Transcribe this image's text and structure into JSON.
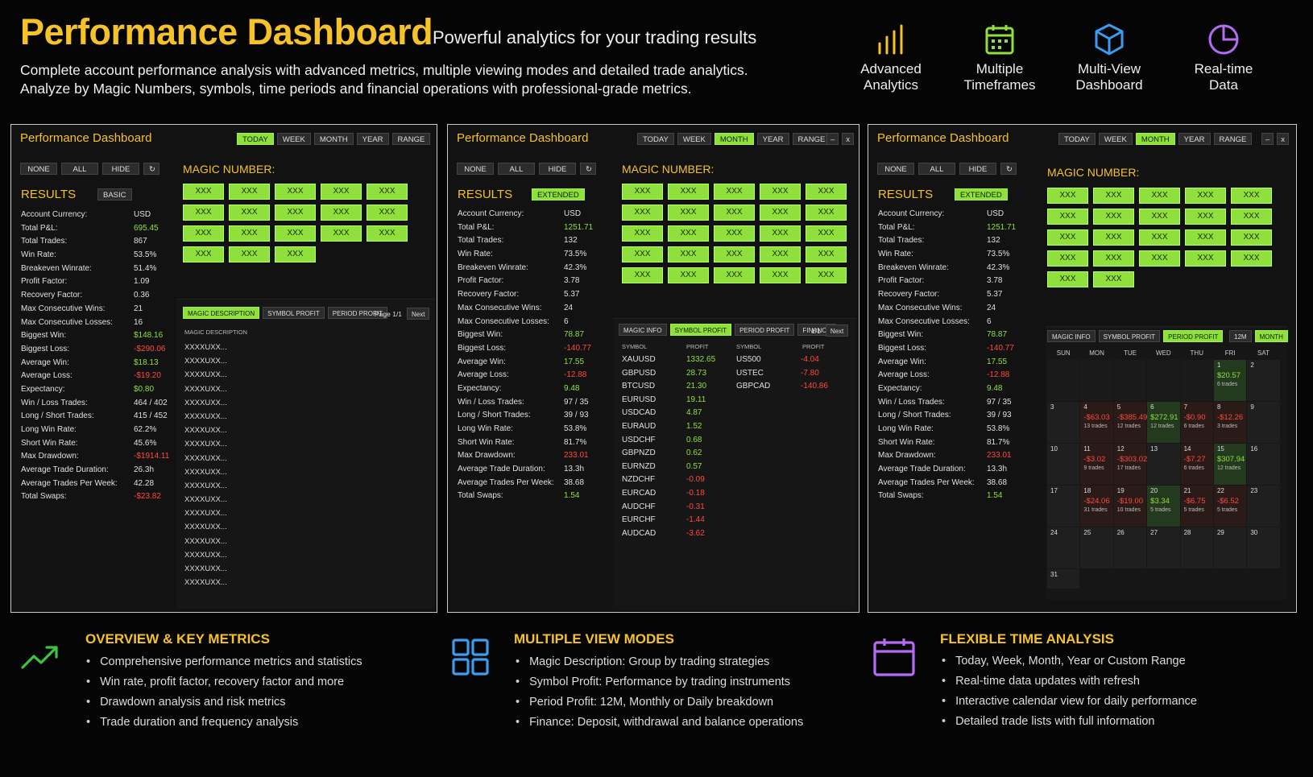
{
  "hero": {
    "title": "Performance Dashboard",
    "subtitle": "Powerful analytics for your trading results",
    "desc1": "Complete account performance analysis with advanced metrics, multiple viewing modes and detailed trade analytics.",
    "desc2": "Analyze by Magic Numbers, symbols, time periods and financial operations with professional-grade metrics."
  },
  "features": [
    {
      "l1": "Advanced",
      "l2": "Analytics",
      "icon": "bar-chart-icon",
      "color": "#f6c22a"
    },
    {
      "l1": "Multiple",
      "l2": "Timeframes",
      "icon": "calendar-icon",
      "color": "#8fe03c"
    },
    {
      "l1": "Multi-View",
      "l2": "Dashboard",
      "icon": "cube-icon",
      "color": "#3b9cf0"
    },
    {
      "l1": "Real-time",
      "l2": "Data",
      "icon": "pie-chart-icon",
      "color": "#b46cf0"
    }
  ],
  "colors": {
    "accent": "#f6c22a",
    "active": "#8fe03c",
    "negative": "#ff4a3d"
  },
  "common": {
    "periods": [
      "TODAY",
      "WEEK",
      "MONTH",
      "YEAR",
      "RANGE"
    ],
    "filters": [
      "NONE",
      "ALL",
      "HIDE",
      "↻"
    ],
    "results_label": "RESULTS",
    "magic_label": "MAGIC NUMBER:",
    "magic_btn": "XXX",
    "win_min": "–",
    "win_close": "x",
    "metric_labels": [
      "Account Currency:",
      "Total P&L:",
      "Total Trades:",
      "Win Rate:",
      "Breakeven Winrate:",
      "Profit Factor:",
      "Recovery Factor:",
      "Max Consecutive Wins:",
      "Max Consecutive Losses:",
      "Biggest Win:",
      "Biggest Loss:",
      "Average Win:",
      "Average Loss:",
      "Expectancy:",
      "Win / Loss Trades:",
      "Long / Short Trades:",
      "Long Win Rate:",
      "Short Win Rate:",
      "Max Drawdown:",
      "Average Trade Duration:",
      "Average Trades Per Week:",
      "Total Swaps:"
    ]
  },
  "panel1": {
    "title": "Performance Dashboard",
    "mode": "BASIC",
    "metrics": [
      [
        "USD",
        "neu"
      ],
      [
        "695.45",
        "pos"
      ],
      [
        "867",
        "neu"
      ],
      [
        "53.5%",
        "neu"
      ],
      [
        "51.4%",
        "neu"
      ],
      [
        "1.09",
        "neu"
      ],
      [
        "0.36",
        "neu"
      ],
      [
        "21",
        "neu"
      ],
      [
        "16",
        "neu"
      ],
      [
        "$148.16",
        "pos"
      ],
      [
        "-$290.06",
        "neg"
      ],
      [
        "$18.13",
        "pos"
      ],
      [
        "-$19.20",
        "neg"
      ],
      [
        "$0.80",
        "pos"
      ],
      [
        "464 / 402",
        "neu"
      ],
      [
        "415 / 452",
        "neu"
      ],
      [
        "62.2%",
        "neu"
      ],
      [
        "45.6%",
        "neu"
      ],
      [
        "-$1914.11",
        "neg"
      ],
      [
        "26.3h",
        "neu"
      ],
      [
        "42.28",
        "neu"
      ],
      [
        "-$23.82",
        "neg"
      ]
    ],
    "tabs": [
      "MAGIC DESCRIPTION",
      "SYMBOL PROFIT",
      "PERIOD PROFIT"
    ],
    "page": "Page 1/1",
    "next": "Next",
    "desc_header": "MAGIC DESCRIPTION",
    "desc_items": [
      "XXXXUXX...",
      "XXXXUXX...",
      "XXXXUXX...",
      "XXXXUXX...",
      "XXXXUXX...",
      "XXXXUXX...",
      "XXXXUXX...",
      "XXXXUXX...",
      "XXXXUXX...",
      "XXXXUXX...",
      "XXXXUXX...",
      "XXXXUXX...",
      "XXXXUXX...",
      "XXXXUXX...",
      "XXXXUXX...",
      "XXXXUXX...",
      "XXXXUXX...",
      "XXXXUXX..."
    ]
  },
  "panel2": {
    "title": "Performance Dashboard",
    "mode": "EXTENDED",
    "metrics": [
      [
        "USD",
        "neu"
      ],
      [
        "1251.71",
        "pos"
      ],
      [
        "132",
        "neu"
      ],
      [
        "73.5%",
        "neu"
      ],
      [
        "42.3%",
        "neu"
      ],
      [
        "3.78",
        "neu"
      ],
      [
        "5.37",
        "neu"
      ],
      [
        "24",
        "neu"
      ],
      [
        "6",
        "neu"
      ],
      [
        "78.87",
        "pos"
      ],
      [
        "-140.77",
        "neg"
      ],
      [
        "17.55",
        "pos"
      ],
      [
        "-12.88",
        "neg"
      ],
      [
        "9.48",
        "pos"
      ],
      [
        "97 / 35",
        "neu"
      ],
      [
        "39 / 93",
        "neu"
      ],
      [
        "53.8%",
        "neu"
      ],
      [
        "81.7%",
        "neu"
      ],
      [
        "233.01",
        "neg"
      ],
      [
        "13.3h",
        "neu"
      ],
      [
        "38.68",
        "neu"
      ],
      [
        "1.54",
        "pos"
      ]
    ],
    "tabs": [
      "MAGIC INFO",
      "SYMBOL PROFIT",
      "PERIOD PROFIT",
      "FINANCE"
    ],
    "page": "1/1",
    "next": "Next",
    "col_symbol": "SYMBOL",
    "col_profit": "PROFIT",
    "symbols_left": [
      [
        "XAUUSD",
        "1332.65",
        "pos"
      ],
      [
        "GBPUSD",
        "28.73",
        "pos"
      ],
      [
        "BTCUSD",
        "21.30",
        "pos"
      ],
      [
        "EURUSD",
        "19.11",
        "pos"
      ],
      [
        "USDCAD",
        "4.87",
        "pos"
      ],
      [
        "EURAUD",
        "1.52",
        "pos"
      ],
      [
        "USDCHF",
        "0.68",
        "pos"
      ],
      [
        "GBPNZD",
        "0.62",
        "pos"
      ],
      [
        "EURNZD",
        "0.57",
        "pos"
      ],
      [
        "NZDCHF",
        "-0.09",
        "neg"
      ],
      [
        "EURCAD",
        "-0.18",
        "neg"
      ],
      [
        "AUDCHF",
        "-0.31",
        "neg"
      ],
      [
        "EURCHF",
        "-1.44",
        "neg"
      ],
      [
        "AUDCAD",
        "-3.62",
        "neg"
      ]
    ],
    "symbols_right": [
      [
        "US500",
        "-4.04",
        "neg"
      ],
      [
        "USTEC",
        "-7.80",
        "neg"
      ],
      [
        "GBPCAD",
        "-140.86",
        "neg"
      ]
    ]
  },
  "panel3": {
    "title": "Performance Dashboard",
    "mode": "EXTENDED",
    "metrics": [
      [
        "USD",
        "neu"
      ],
      [
        "1251.71",
        "pos"
      ],
      [
        "132",
        "neu"
      ],
      [
        "73.5%",
        "neu"
      ],
      [
        "42.3%",
        "neu"
      ],
      [
        "3.78",
        "neu"
      ],
      [
        "5.37",
        "neu"
      ],
      [
        "24",
        "neu"
      ],
      [
        "6",
        "neu"
      ],
      [
        "78.87",
        "pos"
      ],
      [
        "-140.77",
        "neg"
      ],
      [
        "17.55",
        "pos"
      ],
      [
        "-12.88",
        "neg"
      ],
      [
        "9.48",
        "pos"
      ],
      [
        "97 / 35",
        "neu"
      ],
      [
        "39 / 93",
        "neu"
      ],
      [
        "53.8%",
        "neu"
      ],
      [
        "81.7%",
        "neu"
      ],
      [
        "233.01",
        "neg"
      ],
      [
        "13.3h",
        "neu"
      ],
      [
        "38.68",
        "neu"
      ],
      [
        "1.54",
        "pos"
      ]
    ],
    "tabs": [
      "MAGIC INFO",
      "SYMBOL PROFIT",
      "PERIOD PROFIT"
    ],
    "view_btns": [
      "12M",
      "MONTH"
    ],
    "weekdays": [
      "SUN",
      "MON",
      "TUE",
      "WED",
      "THU",
      "FRI",
      "SAT"
    ],
    "calendar": [
      {
        "d": "",
        "a": "",
        "c": "",
        "t": ""
      },
      {
        "d": "",
        "a": "",
        "c": "",
        "t": ""
      },
      {
        "d": "",
        "a": "",
        "c": "",
        "t": ""
      },
      {
        "d": "",
        "a": "",
        "c": "",
        "t": ""
      },
      {
        "d": "",
        "a": "",
        "c": "",
        "t": ""
      },
      {
        "d": "1",
        "a": "$20.57",
        "c": "6 trades",
        "t": "pos"
      },
      {
        "d": "2",
        "a": "",
        "c": "",
        "t": ""
      },
      {
        "d": "3",
        "a": "",
        "c": "",
        "t": ""
      },
      {
        "d": "4",
        "a": "-$63.03",
        "c": "13 trades",
        "t": "neg"
      },
      {
        "d": "5",
        "a": "-$385.49",
        "c": "12 trades",
        "t": "neg"
      },
      {
        "d": "6",
        "a": "$272.91",
        "c": "12 trades",
        "t": "pos"
      },
      {
        "d": "7",
        "a": "-$0.90",
        "c": "6 trades",
        "t": "neg"
      },
      {
        "d": "8",
        "a": "-$12.26",
        "c": "3 trades",
        "t": "neg"
      },
      {
        "d": "9",
        "a": "",
        "c": "",
        "t": ""
      },
      {
        "d": "10",
        "a": "",
        "c": "",
        "t": ""
      },
      {
        "d": "11",
        "a": "-$3.02",
        "c": "9 trades",
        "t": "neg"
      },
      {
        "d": "12",
        "a": "-$303.02",
        "c": "17 trades",
        "t": "neg"
      },
      {
        "d": "13",
        "a": "",
        "c": "",
        "t": ""
      },
      {
        "d": "14",
        "a": "-$7.27",
        "c": "6 trades",
        "t": "neg"
      },
      {
        "d": "15",
        "a": "$307.94",
        "c": "12 trades",
        "t": "pos"
      },
      {
        "d": "16",
        "a": "",
        "c": "",
        "t": ""
      },
      {
        "d": "17",
        "a": "",
        "c": "",
        "t": ""
      },
      {
        "d": "18",
        "a": "-$24.06",
        "c": "31 trades",
        "t": "neg"
      },
      {
        "d": "19",
        "a": "-$19.00",
        "c": "10 trades",
        "t": "neg"
      },
      {
        "d": "20",
        "a": "$3.34",
        "c": "5 trades",
        "t": "pos"
      },
      {
        "d": "21",
        "a": "-$6.75",
        "c": "5 trades",
        "t": "neg"
      },
      {
        "d": "22",
        "a": "-$6.52",
        "c": "5 trades",
        "t": "neg"
      },
      {
        "d": "23",
        "a": "",
        "c": "",
        "t": ""
      },
      {
        "d": "24",
        "a": "",
        "c": "",
        "t": ""
      },
      {
        "d": "25",
        "a": "",
        "c": "",
        "t": ""
      },
      {
        "d": "26",
        "a": "",
        "c": "",
        "t": ""
      },
      {
        "d": "27",
        "a": "",
        "c": "",
        "t": ""
      },
      {
        "d": "28",
        "a": "",
        "c": "",
        "t": ""
      },
      {
        "d": "29",
        "a": "",
        "c": "",
        "t": ""
      },
      {
        "d": "30",
        "a": "",
        "c": "",
        "t": ""
      },
      {
        "d": "31",
        "a": "",
        "c": "",
        "t": ""
      }
    ]
  },
  "bottom": [
    {
      "icon": "trend-up-icon",
      "color": "#3fc23f",
      "title": "OVERVIEW & KEY METRICS",
      "items": [
        "Comprehensive performance metrics and statistics",
        "Win rate, profit factor, recovery factor and more",
        "Drawdown analysis and risk metrics",
        "Trade duration and frequency analysis"
      ]
    },
    {
      "icon": "grid-icon",
      "color": "#3b9cf0",
      "title": "MULTIPLE VIEW MODES",
      "items": [
        "Magic Description: Group by trading strategies",
        "Symbol Profit: Performance by trading instruments",
        "Period Profit: 12M, Monthly or Daily breakdown",
        "Finance: Deposit, withdrawal and balance operations"
      ]
    },
    {
      "icon": "calendar-icon",
      "color": "#b46cf0",
      "title": "FLEXIBLE TIME ANALYSIS",
      "items": [
        "Today, Week, Month, Year or Custom Range",
        "Real-time data updates with refresh",
        "Interactive calendar view for daily performance",
        "Detailed trade lists with full information"
      ]
    }
  ]
}
